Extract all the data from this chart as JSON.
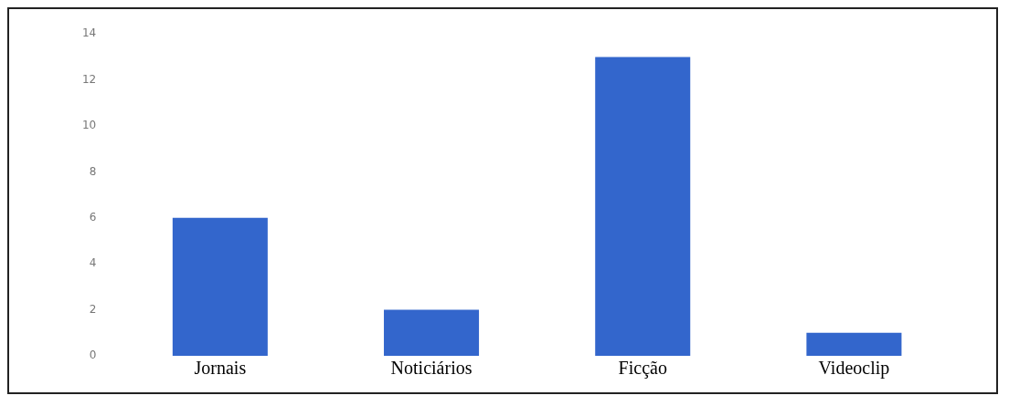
{
  "chart_data": {
    "type": "bar",
    "categories": [
      "Jornais",
      "Noticiários",
      "Ficção",
      "Videoclip"
    ],
    "values": [
      6,
      2,
      13,
      1
    ],
    "color": "#3366cc",
    "ylim": [
      0,
      14
    ],
    "yticks": [
      0,
      2,
      4,
      6,
      8,
      10,
      12,
      14
    ],
    "grid": false,
    "legend": false
  }
}
